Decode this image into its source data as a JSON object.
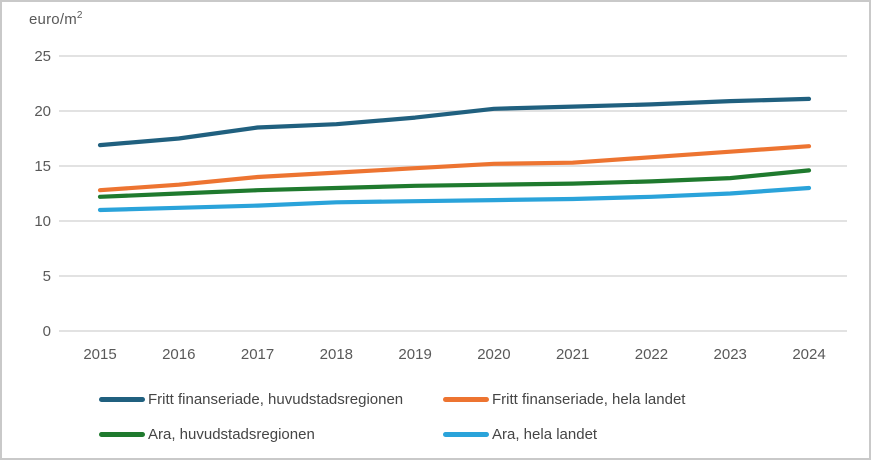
{
  "unit": {
    "base": "euro/m",
    "sup": "2"
  },
  "chart_data": {
    "type": "line",
    "title": "euro/m2",
    "categories": [
      "2015",
      "2016",
      "2017",
      "2018",
      "2019",
      "2020",
      "2021",
      "2022",
      "2023",
      "2024"
    ],
    "series": [
      {
        "name": "Fritt finanseriade, huvudstadsregionen",
        "color": "#20607f",
        "values": [
          16.9,
          17.5,
          18.5,
          18.8,
          19.4,
          20.2,
          20.4,
          20.6,
          20.9,
          21.1
        ]
      },
      {
        "name": "Fritt finanseriade, hela landet",
        "color": "#ed7431",
        "values": [
          12.8,
          13.3,
          14.0,
          14.4,
          14.8,
          15.2,
          15.3,
          15.8,
          16.3,
          16.8
        ]
      },
      {
        "name": "Ara, huvudstadsregionen",
        "color": "#1f7a2e",
        "values": [
          12.2,
          12.5,
          12.8,
          13.0,
          13.2,
          13.3,
          13.4,
          13.6,
          13.9,
          14.6
        ]
      },
      {
        "name": "Ara, hela landet",
        "color": "#2aa3da",
        "values": [
          11.0,
          11.2,
          11.4,
          11.7,
          11.8,
          11.9,
          12.0,
          12.2,
          12.5,
          13.0
        ]
      }
    ],
    "ylim": [
      0,
      25
    ],
    "ytick_labels": [
      "0",
      "5",
      "10",
      "15",
      "20",
      "25"
    ],
    "ytick_step": 5,
    "xlabel": "",
    "ylabel": "euro/m2",
    "grid": true,
    "legend_position": "bottom",
    "colors": {
      "grid": "#d9d9d9",
      "axis_text": "#595959",
      "legend_text": "#454545",
      "frame_border": "#c9c9c9",
      "background": "#ffffff"
    }
  }
}
